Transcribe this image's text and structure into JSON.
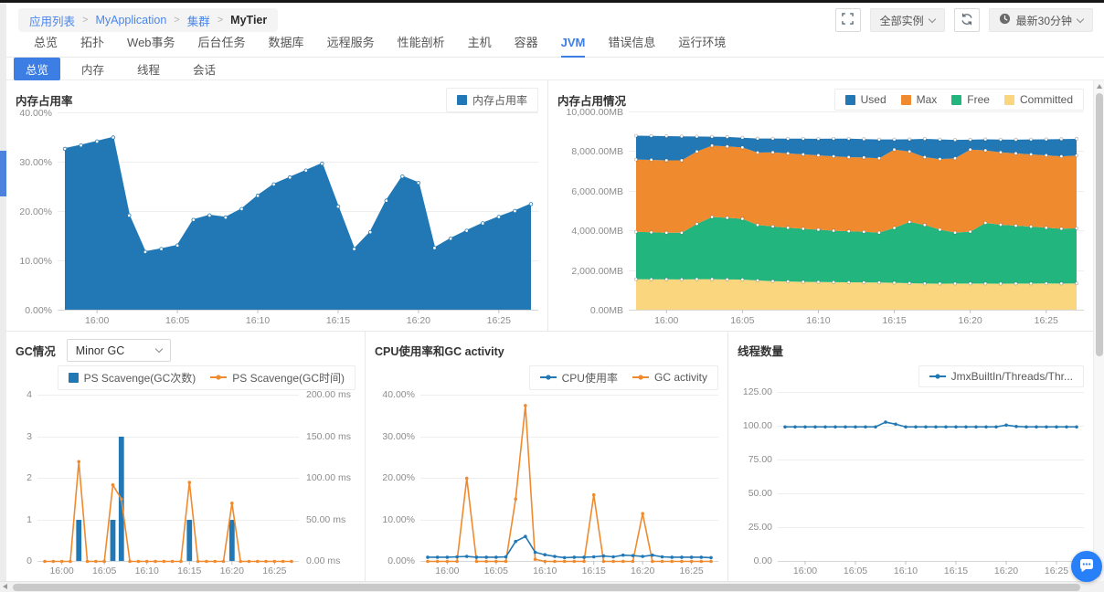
{
  "header": {
    "breadcrumb": {
      "links": [
        "应用列表",
        "MyApplication",
        "集群"
      ],
      "current": "MyTier",
      "separator": ">"
    },
    "instance_selector": "全部实例",
    "time_selector": "最新30分钟"
  },
  "icons": {
    "fullscreen": "fullscreen-icon",
    "refresh": "refresh-icon",
    "clock": "clock-icon",
    "chevron": "chevron-down-icon",
    "chat": "chat-bubble-icon"
  },
  "tabs": {
    "items": [
      "总览",
      "拓扑",
      "Web事务",
      "后台任务",
      "数据库",
      "远程服务",
      "性能剖析",
      "主机",
      "容器",
      "JVM",
      "错误信息",
      "运行环境"
    ],
    "active": "JVM"
  },
  "subtabs": {
    "items": [
      "总览",
      "内存",
      "线程",
      "会话"
    ],
    "active": "总览"
  },
  "colors": {
    "primary_blue": "#3d7ee4",
    "series_blue": "#2178b5",
    "series_orange": "#f08a2e",
    "series_green": "#22b57e",
    "series_yellow": "#fad67f",
    "link_blue": "#4a86e8",
    "chat_blue": "#2780f8"
  },
  "chart_data": [
    {
      "id": "memory-usage-rate",
      "type": "area",
      "title": "内存占用率",
      "legend": [
        {
          "label": "内存占用率",
          "color": "#2178b5",
          "marker": "square"
        }
      ],
      "color": "#2178b5",
      "y_max": 40,
      "y_ticks": [
        "40.00%",
        "30.00%",
        "20.00%",
        "10.00%",
        "0.00%"
      ],
      "x_tick_labels": [
        "16:00",
        "16:05",
        "16:10",
        "16:15",
        "16:20",
        "16:25"
      ],
      "x_tick_idx": [
        2,
        7,
        12,
        17,
        22,
        27
      ],
      "values": [
        32.7,
        33.4,
        34.2,
        35.0,
        19.2,
        11.8,
        12.4,
        13.1,
        18.3,
        19.2,
        18.8,
        20.5,
        23.2,
        25.5,
        26.9,
        28.3,
        29.7,
        21.0,
        12.4,
        15.8,
        22.2,
        27.1,
        25.8,
        12.6,
        14.5,
        16.1,
        17.6,
        18.9,
        20.1,
        21.5
      ]
    },
    {
      "id": "memory-usage-detail",
      "type": "stacked",
      "title": "内存占用情况",
      "legend": [
        {
          "label": "Used",
          "color": "#2178b5",
          "marker": "square"
        },
        {
          "label": "Max",
          "color": "#f08a2e",
          "marker": "square"
        },
        {
          "label": "Free",
          "color": "#22b57e",
          "marker": "square"
        },
        {
          "label": "Committed",
          "color": "#fad67f",
          "marker": "square"
        }
      ],
      "y_max": 10000,
      "y_ticks": [
        "10,000.00MB",
        "8,000.00MB",
        "6,000.00MB",
        "4,000.00MB",
        "2,000.00MB",
        "0.00MB"
      ],
      "x_tick_labels": [
        "16:00",
        "16:05",
        "16:10",
        "16:15",
        "16:20",
        "16:25"
      ],
      "x_tick_idx": [
        2,
        7,
        12,
        17,
        22,
        27
      ],
      "bands": [
        {
          "name": "Committed",
          "color": "#fad67f",
          "top": [
            1560,
            1555,
            1555,
            1550,
            1560,
            1560,
            1550,
            1545,
            1500,
            1465,
            1445,
            1430,
            1420,
            1410,
            1405,
            1400,
            1395,
            1385,
            1360,
            1345,
            1335,
            1340,
            1345,
            1340,
            1335,
            1340,
            1345,
            1350,
            1345,
            1350
          ]
        },
        {
          "name": "Free",
          "color": "#22b57e",
          "top": [
            3950,
            3930,
            3905,
            3905,
            4350,
            4700,
            4660,
            4610,
            4300,
            4220,
            4160,
            4105,
            4060,
            4010,
            3980,
            3950,
            3910,
            4150,
            4450,
            4300,
            4060,
            3910,
            3960,
            4400,
            4310,
            4260,
            4210,
            4160,
            4110,
            4130
          ]
        },
        {
          "name": "Max",
          "color": "#f08a2e",
          "top": [
            7600,
            7580,
            7560,
            7560,
            8000,
            8300,
            8260,
            8210,
            7950,
            7960,
            7910,
            7860,
            7810,
            7760,
            7720,
            7700,
            7660,
            8100,
            8000,
            7720,
            7620,
            7660,
            8100,
            8060,
            7960,
            7910,
            7860,
            7810,
            7760,
            7800
          ]
        },
        {
          "name": "Used",
          "color": "#2178b5",
          "top": [
            8800,
            8790,
            8780,
            8770,
            8760,
            8750,
            8740,
            8700,
            8660,
            8655,
            8650,
            8650,
            8645,
            8650,
            8650,
            8630,
            8610,
            8610,
            8620,
            8640,
            8610,
            8590,
            8600,
            8620,
            8605,
            8600,
            8610,
            8620,
            8630,
            8640
          ]
        }
      ]
    },
    {
      "id": "gc",
      "type": "barline",
      "title": "GC情况",
      "dropdown": "Minor GC",
      "legend": [
        {
          "label": "PS Scavenge(GC次数)",
          "color": "#2178b5",
          "marker": "square"
        },
        {
          "label": "PS Scavenge(GC时间)",
          "color": "#f08a2e",
          "marker": "line"
        }
      ],
      "bar_color": "#2178b5",
      "line_color": "#f08a2e",
      "y_max": 4,
      "y_ticks": [
        "4",
        "3",
        "2",
        "1",
        "0"
      ],
      "y2_max": 200,
      "y2_ticks": [
        "200.00 ms",
        "150.00 ms",
        "100.00 ms",
        "50.00 ms",
        "0.00 ms"
      ],
      "x_tick_labels": [
        "16:00",
        "16:05",
        "16:10",
        "16:15",
        "16:20",
        "16:25"
      ],
      "x_tick_idx": [
        2,
        7,
        12,
        17,
        22,
        27
      ],
      "bars": [
        0,
        0,
        0,
        0,
        1,
        0,
        0,
        0,
        1,
        3,
        0,
        0,
        0,
        0,
        0,
        0,
        0,
        1,
        0,
        0,
        0,
        0,
        1,
        0,
        0,
        0,
        0,
        0,
        0,
        0
      ],
      "line": [
        0,
        0,
        0,
        0,
        120,
        0,
        0,
        0,
        92,
        75,
        0,
        0,
        0,
        0,
        0,
        0,
        0,
        95,
        0,
        0,
        0,
        0,
        70,
        0,
        0,
        0,
        0,
        0,
        0,
        0
      ]
    },
    {
      "id": "cpu-gc-activity",
      "type": "lines",
      "title": "CPU使用率和GC activity",
      "legend": [
        {
          "label": "CPU使用率",
          "color": "#2178b5",
          "marker": "line"
        },
        {
          "label": "GC activity",
          "color": "#f08a2e",
          "marker": "line"
        }
      ],
      "y_max": 40,
      "y_ticks": [
        "40.00%",
        "30.00%",
        "20.00%",
        "10.00%",
        "0.00%"
      ],
      "x_tick_labels": [
        "16:00",
        "16:05",
        "16:10",
        "16:15",
        "16:20",
        "16:25"
      ],
      "x_tick_idx": [
        2,
        7,
        12,
        17,
        22,
        27
      ],
      "series": [
        {
          "name": "CPU使用率",
          "color": "#2178b5",
          "values": [
            1,
            1,
            1,
            1.1,
            1.2,
            1,
            1,
            1,
            1.1,
            4.8,
            6,
            2.2,
            1.6,
            1.2,
            0.9,
            1,
            1,
            1.1,
            1.3,
            1.1,
            1.5,
            1.4,
            1.2,
            1.5,
            1.1,
            1,
            1,
            1,
            1,
            0.9
          ]
        },
        {
          "name": "GC activity",
          "color": "#f08a2e",
          "values": [
            0,
            0,
            0,
            0,
            20,
            0,
            0,
            0,
            0,
            15,
            37.5,
            0.5,
            0,
            0,
            0,
            0,
            0,
            16,
            0,
            0,
            0,
            0,
            11.5,
            0,
            0,
            0,
            0,
            0,
            0,
            0
          ]
        }
      ]
    },
    {
      "id": "thread-count",
      "type": "lines",
      "title": "线程数量",
      "legend": [
        {
          "label": "JmxBuiltIn/Threads/Thr...",
          "color": "#2178b5",
          "marker": "line"
        }
      ],
      "y_max": 125,
      "y_ticks": [
        "125.00",
        "100.00",
        "75.00",
        "50.00",
        "25.00",
        "0.00"
      ],
      "x_tick_labels": [
        "16:00",
        "16:05",
        "16:10",
        "16:15",
        "16:20",
        "16:25"
      ],
      "x_tick_idx": [
        2,
        7,
        12,
        17,
        22,
        27
      ],
      "series": [
        {
          "name": "JmxBuiltIn/Threads/Thr...",
          "color": "#2178b5",
          "values": [
            99.5,
            99.5,
            99.5,
            99.5,
            99.5,
            99.5,
            99.5,
            99.5,
            99.5,
            99.5,
            103,
            101.5,
            99.5,
            99.5,
            99.5,
            99.5,
            99.5,
            99.5,
            99.5,
            99.5,
            99.5,
            99.5,
            100.8,
            99.8,
            99.5,
            99.5,
            99.5,
            99.5,
            99.5,
            99.5
          ]
        }
      ]
    }
  ]
}
